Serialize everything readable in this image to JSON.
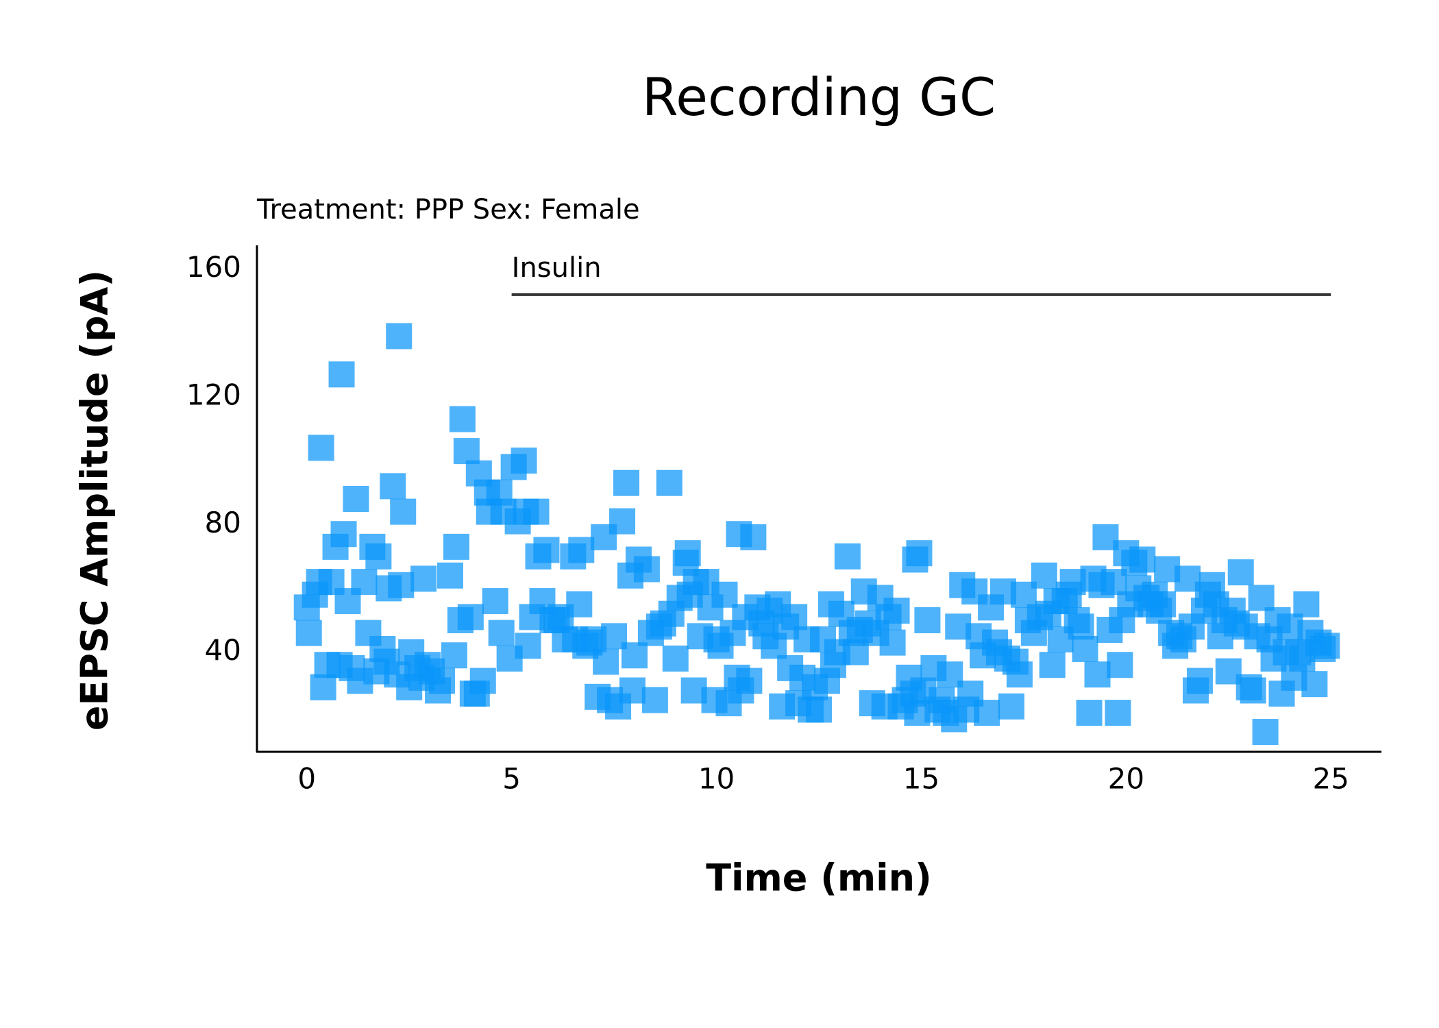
{
  "chart_data": {
    "type": "scatter",
    "title": "Recording GC",
    "subtitle": "Treatment: PPP  Sex: Female",
    "x_label": "Time (min)",
    "y_label": "eEPSC Amplitude (pA)",
    "marker": "square",
    "color": "#0a96fa",
    "xlim": [
      -1.2,
      26.2
    ],
    "xticks": [
      0,
      5,
      10,
      15,
      20,
      25
    ],
    "ylim": [
      9,
      167
    ],
    "yticks": [
      40,
      80,
      120,
      160
    ],
    "annotation": {
      "text": "Insulin",
      "x": [
        5,
        25
      ],
      "y": 152
    },
    "x": [
      0,
      0.05,
      0.2,
      0.3,
      0.35,
      0.4,
      0.5,
      0.6,
      0.7,
      0.8,
      0.85,
      0.9,
      1.0,
      1.1,
      1.2,
      1.3,
      1.4,
      1.5,
      1.6,
      1.7,
      1.75,
      1.85,
      1.95,
      2.0,
      2.1,
      2.2,
      2.25,
      2.3,
      2.35,
      2.5,
      2.55,
      2.7,
      2.8,
      2.85,
      2.95,
      3.05,
      3.2,
      3.3,
      3.5,
      3.6,
      3.65,
      3.75,
      3.8,
      3.9,
      4.0,
      4.05,
      4.15,
      4.2,
      4.3,
      4.4,
      4.45,
      4.6,
      4.7,
      4.75,
      4.8,
      4.95,
      5.05,
      5.15,
      5.3,
      5.35,
      5.4,
      5.5,
      5.6,
      5.65,
      5.75,
      5.85,
      6.0,
      6.1,
      6.2,
      6.3,
      6.5,
      6.55,
      6.65,
      6.7,
      6.8,
      6.9,
      7.0,
      7.1,
      7.25,
      7.3,
      7.4,
      7.5,
      7.6,
      7.7,
      7.8,
      7.9,
      7.95,
      8.0,
      8.1,
      8.3,
      8.4,
      8.5,
      8.6,
      8.7,
      8.85,
      8.9,
      9.0,
      9.1,
      9.25,
      9.3,
      9.35,
      9.45,
      9.5,
      9.6,
      9.75,
      9.85,
      9.95,
      10.0,
      10.1,
      10.2,
      10.3,
      10.4,
      10.5,
      10.55,
      10.6,
      10.7,
      10.8,
      10.9,
      11.0,
      11.1,
      11.2,
      11.3,
      11.4,
      11.5,
      11.6,
      11.7,
      11.8,
      11.9,
      12.0,
      12.1,
      12.2,
      12.3,
      12.4,
      12.5,
      12.6,
      12.7,
      12.8,
      12.85,
      12.95,
      13.05,
      13.2,
      13.3,
      13.4,
      13.5,
      13.6,
      13.7,
      13.8,
      13.9,
      14.0,
      14.1,
      14.2,
      14.3,
      14.4,
      14.5,
      14.6,
      14.7,
      14.8,
      14.85,
      14.9,
      14.95,
      15.05,
      15.15,
      15.3,
      15.4,
      15.5,
      15.6,
      15.7,
      15.8,
      15.9,
      16.0,
      16.1,
      16.2,
      16.3,
      16.4,
      16.5,
      16.6,
      16.7,
      16.8,
      16.9,
      17.0,
      17.1,
      17.2,
      17.3,
      17.4,
      17.5,
      17.6,
      17.75,
      17.9,
      18.0,
      18.1,
      18.2,
      18.3,
      18.4,
      18.5,
      18.6,
      18.7,
      18.8,
      18.9,
      19.0,
      19.1,
      19.2,
      19.3,
      19.4,
      19.5,
      19.6,
      19.7,
      19.8,
      19.85,
      19.9,
      20.0,
      20.1,
      20.2,
      20.3,
      20.4,
      20.5,
      20.6,
      20.7,
      20.8,
      20.9,
      21.0,
      21.1,
      21.2,
      21.3,
      21.4,
      21.5,
      21.6,
      21.7,
      21.8,
      21.9,
      22.0,
      22.1,
      22.2,
      22.3,
      22.4,
      22.5,
      22.6,
      22.7,
      22.8,
      22.9,
      23.0,
      23.1,
      23.2,
      23.3,
      23.4,
      23.5,
      23.6,
      23.7,
      23.8,
      23.9,
      24.0,
      24.1,
      24.2,
      24.3,
      24.4,
      24.5,
      24.6,
      24.7,
      24.8,
      24.9
    ],
    "values": [
      54,
      46,
      58,
      62,
      104,
      29,
      36,
      62,
      73,
      36,
      127,
      77,
      56,
      35,
      88,
      31,
      62,
      46,
      73,
      34,
      70,
      41,
      37,
      60,
      92,
      33,
      139,
      61,
      84,
      29,
      40,
      35,
      32,
      63,
      36,
      34,
      28,
      31,
      64,
      39,
      73,
      50,
      113,
      103,
      51,
      27,
      27,
      96,
      31,
      90,
      84,
      56,
      90,
      46,
      84,
      38,
      98,
      81,
      100,
      84,
      42,
      51,
      84,
      70,
      56,
      72,
      50,
      50,
      51,
      44,
      70,
      44,
      55,
      72,
      42,
      43,
      44,
      26,
      76,
      37,
      25,
      45,
      23,
      81,
      93,
      64,
      28,
      39,
      69,
      66,
      46,
      25,
      48,
      49,
      93,
      52,
      38,
      57,
      68,
      71,
      58,
      28,
      62,
      45,
      62,
      54,
      25,
      44,
      42,
      58,
      24,
      46,
      32,
      77,
      28,
      51,
      31,
      76,
      54,
      49,
      45,
      53,
      42,
      55,
      23,
      48,
      35,
      51,
      24,
      32,
      44,
      22,
      29,
      22,
      44,
      31,
      55,
      36,
      40,
      52,
      70,
      46,
      40,
      47,
      59,
      49,
      24,
      46,
      57,
      23,
      51,
      43,
      53,
      23,
      25,
      32,
      27,
      69,
      21,
      71,
      28,
      50,
      35,
      22,
      25,
      21,
      33,
      19,
      48,
      61,
      22,
      27,
      59,
      45,
      39,
      21,
      54,
      43,
      40,
      59,
      38,
      23,
      37,
      33,
      58,
      50,
      46,
      51,
      64,
      52,
      36,
      56,
      44,
      56,
      58,
      62,
      50,
      48,
      41,
      21,
      63,
      33,
      61,
      76,
      47,
      62,
      21,
      36,
      50,
      71,
      55,
      68,
      60,
      69,
      57,
      55,
      58,
      53,
      55,
      66,
      46,
      42,
      45,
      44,
      63,
      48,
      28,
      31,
      53,
      58,
      61,
      55,
      45,
      50,
      34,
      53,
      49,
      65,
      48,
      29,
      28,
      45,
      57,
      15,
      44,
      38,
      50,
      27,
      40,
      48,
      32,
      40,
      38,
      55,
      46,
      30,
      43,
      41,
      42
    ]
  }
}
